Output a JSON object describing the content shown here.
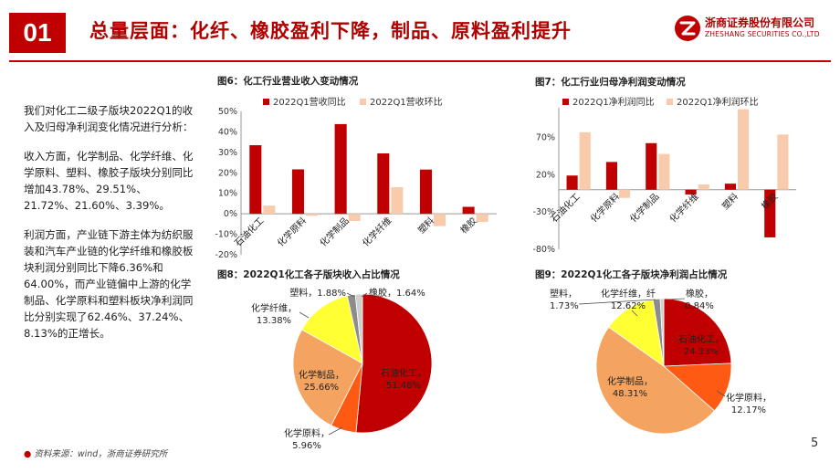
{
  "header": {
    "section_number": "01",
    "title": "总量层面：化纤、橡胶盈利下降，制品、原料盈利提升",
    "logo_cn": "浙商证券股份有限公司",
    "logo_en": "ZHESHANG SECURITIES CO.,LTD",
    "colors": {
      "accent": "#c00000",
      "dark_red": "#b00000",
      "light": "#f8cbad"
    }
  },
  "left_text": {
    "p1": "我们对化工二级子版块2022Q1的收入及归母净利润变化情况进行分析：",
    "p2": "收入方面，化学制品、化学纤维、化学原料、塑料、橡胶子版块分别同比增加43.78%、29.51%、21.72%、21.60%、3.39%。",
    "p3": "利润方面，产业链下游主体为纺织服装和汽车产业链的化学纤维和橡胶板块利润分别同比下降6.36%和64.00%，而产业链偏中上游的化学制品、化学原料和塑料板块净利润同比分别实现了62.46%、37.24%、8.13%的正增长。"
  },
  "fig6": {
    "title": "图6：化工行业营业收入变动情况"
  },
  "fig7": {
    "title": "图7：化工行业归母净利润变动情况"
  },
  "fig8": {
    "title": "图8：2022Q1化工各子版块收入占比情况"
  },
  "fig9": {
    "title": "图9：2022Q1化工各子版块净利润占比情况"
  },
  "chart_data": [
    {
      "type": "bar",
      "categories": [
        "石油化工",
        "化学原料",
        "化学制品",
        "化学纤维",
        "塑料",
        "橡胶"
      ],
      "series": [
        {
          "name": "2022Q1营收同比",
          "values": [
            33.5,
            21.7,
            43.8,
            29.5,
            21.6,
            3.4
          ]
        },
        {
          "name": "2022Q1营收环比",
          "values": [
            4.0,
            -1.0,
            -3.5,
            13.0,
            -6.0,
            -4.0
          ]
        }
      ],
      "ylim": [
        -20,
        50
      ],
      "yticks": [
        "-20%",
        "-10%",
        "0%",
        "10%",
        "20%",
        "30%",
        "40%",
        "50%"
      ],
      "legend": "top"
    },
    {
      "type": "bar",
      "categories": [
        "石油化工",
        "化学原料",
        "化学制品",
        "化学纤维",
        "塑料",
        "橡胶"
      ],
      "series": [
        {
          "name": "2022Q1净利润同比",
          "values": [
            19,
            37.2,
            62.5,
            -6.4,
            8.1,
            -64
          ]
        },
        {
          "name": "2022Q1净利润环比",
          "values": [
            77,
            -11,
            48,
            7,
            108,
            74
          ]
        }
      ],
      "ylim": [
        -80,
        110
      ],
      "yticks": [
        "-80%",
        "-30%",
        "20%",
        "70%"
      ],
      "legend": "top"
    },
    {
      "type": "pie",
      "slices": [
        {
          "label": "石油化工",
          "value": 51.48,
          "value_text": "51.48%",
          "color": "#c00000"
        },
        {
          "label": "化学原料",
          "value": 5.96,
          "value_text": "5.96%",
          "color": "#ff5a14"
        },
        {
          "label": "化学制品",
          "value": 25.66,
          "value_text": "25.66%",
          "color": "#f4a460"
        },
        {
          "label": "化学纤维",
          "value": 13.38,
          "value_text": "13.38%",
          "color": "#ffff33"
        },
        {
          "label": "塑料",
          "value": 1.88,
          "value_text": "1.88%",
          "color": "#8c8c8c"
        },
        {
          "label": "橡胶",
          "value": 1.64,
          "value_text": "1.64%",
          "color": "#cfcfcf"
        }
      ]
    },
    {
      "type": "pie",
      "slices": [
        {
          "label": "石油化工",
          "value": 24.33,
          "value_text": "24.33%",
          "color": "#c00000"
        },
        {
          "label": "化学原料",
          "value": 12.17,
          "value_text": "12.17%",
          "color": "#ff5a14"
        },
        {
          "label": "化学制品",
          "value": 48.31,
          "value_text": "48.31%",
          "color": "#f4a460"
        },
        {
          "label": "化学纤维",
          "value": 12.62,
          "value_text": "12.62%",
          "color": "#ffff33"
        },
        {
          "label": "塑料",
          "value": 1.73,
          "value_text": "1.73%",
          "color": "#8c8c8c"
        },
        {
          "label": "橡胶",
          "value": 0.84,
          "value_text": "0.84%",
          "color": "#cfcfcf"
        }
      ]
    }
  ],
  "footer": {
    "source": "资料来源：wind，浙商证券研究所",
    "page_number": "5"
  }
}
